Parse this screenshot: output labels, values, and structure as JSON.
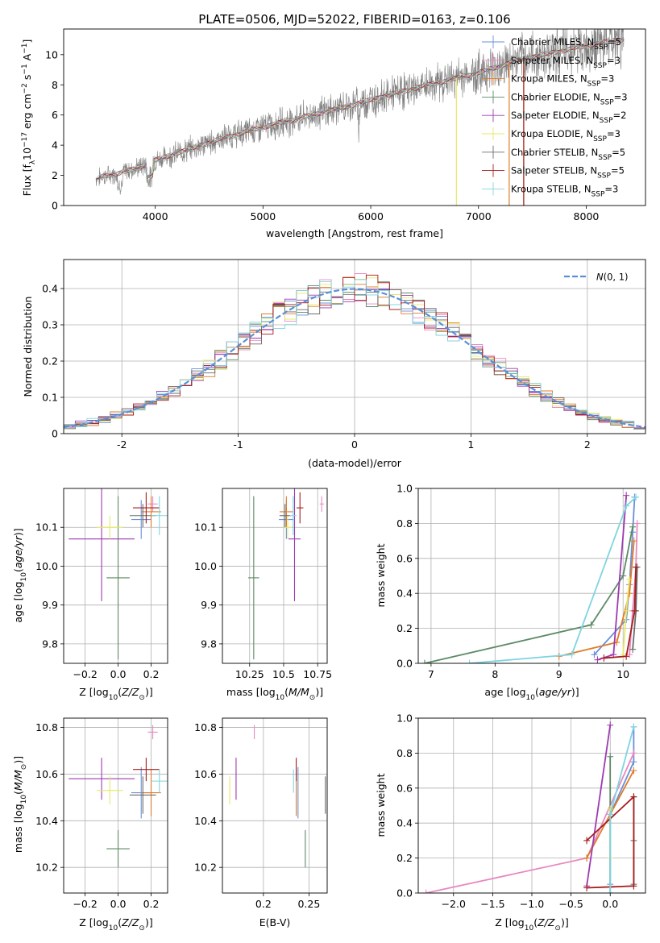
{
  "colors": {
    "chabrier_miles": "#6a8fd8",
    "salpeter_miles": "#e888c0",
    "kroupa_miles": "#e07b28",
    "chabrier_elodie": "#5d8a64",
    "salpeter_elodie": "#9d3ab0",
    "kroupa_elodie": "#e8e868",
    "chabrier_stelib": "#6b6b6b",
    "salpeter_stelib": "#a51d1d",
    "kroupa_stelib": "#7fd4e0",
    "data": "#808080",
    "gauss": "#5a8fd8"
  },
  "chart_data": [
    {
      "type": "line",
      "title": "PLATE=0506, MJD=52022, FIBERID=0163, z=0.106",
      "xlabel": "wavelength [Angstrom, rest frame]",
      "ylabel": "Flux [f_λ10^-17 erg cm^-2 s^-1 A^-1]",
      "xlim": [
        3150,
        8550
      ],
      "ylim": [
        0,
        11.7
      ],
      "xticks": [
        4000,
        5000,
        6000,
        7000,
        8000
      ],
      "yticks": [
        0,
        2,
        4,
        6,
        8,
        10
      ],
      "legend": [
        "Chabrier MILES, N_SSP=5",
        "Salpeter MILES, N_SSP=3",
        "Kroupa MILES, N_SSP=3",
        "Chabrier ELODIE, N_SSP=3",
        "Salpeter ELODIE, N_SSP=2",
        "Kroupa ELODIE, N_SSP=3",
        "Chabrier STELIB, N_SSP=5",
        "Salpeter STELIB, N_SSP=5",
        "Kroupa STELIB, N_SSP=3"
      ],
      "legend_position": "right",
      "spectrum_anchors": [
        [
          3450,
          1.8
        ],
        [
          3800,
          2.4
        ],
        [
          4000,
          3.0
        ],
        [
          4300,
          3.7
        ],
        [
          4600,
          4.4
        ],
        [
          5000,
          5.2
        ],
        [
          5400,
          5.9
        ],
        [
          5800,
          6.6
        ],
        [
          6200,
          7.4
        ],
        [
          6600,
          8.1
        ],
        [
          7000,
          8.8
        ],
        [
          7400,
          9.7
        ],
        [
          7800,
          10.3
        ],
        [
          8300,
          11.0
        ]
      ]
    },
    {
      "type": "bar",
      "xlabel": "(data-model)/error",
      "ylabel": "Normed distribution",
      "xlim": [
        -2.5,
        2.5
      ],
      "ylim": [
        0,
        0.48
      ],
      "xticks": [
        -2,
        -1,
        0,
        1,
        2
      ],
      "yticks": [
        0.0,
        0.1,
        0.2,
        0.3,
        0.4
      ],
      "legend": [
        "N(0,1)"
      ],
      "legend_position": "upper right",
      "bin_width": 0.1,
      "grid": true
    },
    {
      "type": "scatter",
      "xlabel": "Z [log10(Z/Z⊙)]",
      "ylabel": "age  [log10(age/yr)]",
      "xlim": [
        -0.33,
        0.3
      ],
      "ylim": [
        9.75,
        10.2
      ],
      "xticks": [
        -0.2,
        0.0,
        0.2
      ],
      "xticklabels": [
        "−0.2",
        "0.0",
        "0.2"
      ],
      "yticks": [
        9.8,
        9.9,
        10.0,
        10.1
      ],
      "grid": true
    },
    {
      "type": "scatter",
      "xlabel": "mass [log10(M/M⊙)]",
      "xlim": [
        10.05,
        10.82
      ],
      "ylim": [
        9.75,
        10.2
      ],
      "xticks": [
        10.25,
        10.5,
        10.75
      ],
      "yticks": [
        9.8,
        9.9,
        10.0,
        10.1
      ],
      "grid": true
    },
    {
      "type": "line",
      "xlabel": "age  [log10(age/yr)]",
      "ylabel": "mass weight",
      "xlim": [
        6.8,
        10.35
      ],
      "ylim": [
        0,
        1
      ],
      "xticks": [
        7,
        8,
        9,
        10
      ],
      "yticks": [
        0.0,
        0.2,
        0.4,
        0.6,
        0.8,
        1.0
      ],
      "grid": true
    },
    {
      "type": "scatter",
      "xlabel": "Z [log10(Z/Z⊙)]",
      "ylabel": "mass [log10(M/M⊙)]",
      "xlim": [
        -0.33,
        0.3
      ],
      "ylim": [
        10.09,
        10.84
      ],
      "xticks": [
        -0.2,
        0.0,
        0.2
      ],
      "xticklabels": [
        "−0.2",
        "0.0",
        "0.2"
      ],
      "yticks": [
        10.2,
        10.4,
        10.6,
        10.8
      ],
      "grid": true
    },
    {
      "type": "scatter",
      "xlabel": "E(B-V)",
      "xlim": [
        0.155,
        0.27
      ],
      "ylim": [
        10.09,
        10.84
      ],
      "xticks": [
        0.2,
        0.25
      ],
      "yticks": [
        10.2,
        10.4,
        10.6,
        10.8
      ],
      "grid": true
    },
    {
      "type": "line",
      "xlabel": "Z [log10(Z/Z⊙)]",
      "ylabel": "mass weight",
      "xlim": [
        -2.45,
        0.45
      ],
      "ylim": [
        0,
        1
      ],
      "xticks": [
        -2.0,
        -1.5,
        -1.0,
        -0.5,
        0.0
      ],
      "xticklabels": [
        "−2.0",
        "−1.5",
        "−1.0",
        "−0.5",
        "0.0"
      ],
      "yticks": [
        0.0,
        0.2,
        0.4,
        0.6,
        0.8,
        1.0
      ],
      "grid": true
    }
  ],
  "models": [
    {
      "key": "chabrier_miles",
      "Z": 0.14,
      "Ze": 0.06,
      "age": 10.12,
      "agee": 0.05,
      "mass": 10.52,
      "masse": 0.11,
      "ebv": 0.238,
      "mwage": [
        [
          9.55,
          0.05
        ],
        [
          10.05,
          0.25
        ],
        [
          10.1,
          0.45
        ],
        [
          10.15,
          0.75
        ],
        [
          10.18,
          0.95
        ]
      ],
      "mwZ": [
        [
          0.0,
          0.05
        ],
        [
          0.0,
          0.45
        ],
        [
          0.3,
          0.75
        ],
        [
          0.3,
          0.95
        ]
      ]
    },
    {
      "key": "salpeter_miles",
      "Z": 0.21,
      "Ze": 0.03,
      "age": 10.16,
      "agee": 0.02,
      "mass": 10.78,
      "masse": 0.03,
      "ebv": 0.19,
      "mwage": [
        [
          10.1,
          0.05
        ],
        [
          10.15,
          0.3
        ],
        [
          10.2,
          0.55
        ],
        [
          10.22,
          0.8
        ]
      ],
      "mwZ": [
        [
          -2.35,
          0.0
        ],
        [
          -0.3,
          0.2
        ],
        [
          0.3,
          0.8
        ]
      ]
    },
    {
      "key": "kroupa_miles",
      "Z": 0.2,
      "Ze": 0.06,
      "age": 10.14,
      "agee": 0.04,
      "mass": 10.52,
      "masse": 0.1,
      "ebv": 0.236,
      "mwage": [
        [
          9.0,
          0.04
        ],
        [
          9.9,
          0.12
        ],
        [
          10.1,
          0.4
        ],
        [
          10.17,
          0.7
        ]
      ],
      "mwZ": [
        [
          -0.3,
          0.2
        ],
        [
          0.3,
          0.7
        ]
      ]
    },
    {
      "key": "chabrier_elodie",
      "Z": 0.0,
      "Ze": 0.07,
      "age": 9.97,
      "agee": 0.21,
      "mass": 10.28,
      "masse": 0.08,
      "ebv": 0.246,
      "mwage": [
        [
          6.9,
          0.0
        ],
        [
          9.5,
          0.22
        ],
        [
          10.0,
          0.5
        ],
        [
          10.15,
          0.78
        ]
      ],
      "mwZ": [
        [
          0.0,
          0.0
        ],
        [
          0.0,
          0.78
        ]
      ]
    },
    {
      "key": "salpeter_elodie",
      "Z": -0.1,
      "Ze": 0.2,
      "age": 10.07,
      "agee": 0.16,
      "mass": 10.58,
      "masse": 0.09,
      "ebv": 0.17,
      "mwage": [
        [
          9.6,
          0.02
        ],
        [
          9.85,
          0.05
        ],
        [
          10.05,
          0.96
        ]
      ],
      "mwZ": [
        [
          -0.3,
          0.04
        ],
        [
          0.0,
          0.96
        ]
      ]
    },
    {
      "key": "kroupa_elodie",
      "Z": -0.05,
      "Ze": 0.08,
      "age": 10.1,
      "agee": 0.03,
      "mass": 10.53,
      "masse": 0.06,
      "ebv": 0.163,
      "mwage": [
        [
          10.0,
          0.05
        ],
        [
          10.05,
          0.3
        ],
        [
          10.1,
          0.48
        ]
      ],
      "mwZ": [
        [
          0.0,
          0.2
        ],
        [
          0.0,
          0.48
        ]
      ]
    },
    {
      "key": "chabrier_stelib",
      "Z": 0.15,
      "Ze": 0.08,
      "age": 10.13,
      "agee": 0.03,
      "mass": 10.51,
      "masse": 0.08,
      "ebv": 0.268,
      "mwage": [
        [
          10.15,
          0.08
        ],
        [
          10.2,
          0.3
        ],
        [
          10.22,
          0.55
        ]
      ],
      "mwZ": [
        [
          0.3,
          0.05
        ],
        [
          0.3,
          0.3
        ],
        [
          0.3,
          0.55
        ]
      ]
    },
    {
      "key": "salpeter_stelib",
      "Z": 0.17,
      "Ze": 0.08,
      "age": 10.15,
      "agee": 0.04,
      "mass": 10.62,
      "masse": 0.05,
      "ebv": 0.236,
      "mwage": [
        [
          9.7,
          0.03
        ],
        [
          10.05,
          0.04
        ],
        [
          10.18,
          0.3
        ],
        [
          10.2,
          0.55
        ]
      ],
      "mwZ": [
        [
          -0.3,
          0.03
        ],
        [
          0.3,
          0.04
        ],
        [
          0.3,
          0.55
        ],
        [
          -0.3,
          0.3
        ]
      ]
    },
    {
      "key": "kroupa_stelib",
      "Z": 0.25,
      "Ze": 0.05,
      "age": 10.13,
      "agee": 0.05,
      "mass": 10.57,
      "masse": 0.05,
      "ebv": 0.233,
      "mwage": [
        [
          7.6,
          0.0
        ],
        [
          9.2,
          0.05
        ],
        [
          10.05,
          0.9
        ],
        [
          10.2,
          0.95
        ]
      ],
      "mwZ": [
        [
          0.0,
          0.0
        ],
        [
          0.0,
          0.45
        ],
        [
          0.3,
          0.95
        ]
      ]
    }
  ]
}
